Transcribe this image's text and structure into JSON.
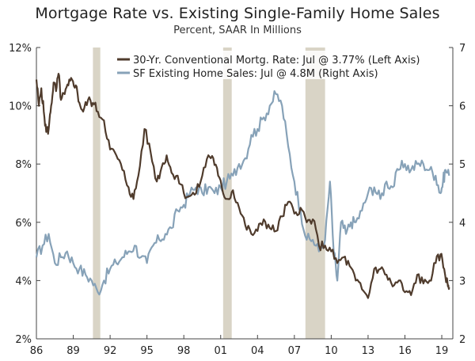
{
  "chart_data": {
    "type": "line",
    "title": "Mortgage Rate vs. Existing Single-Family Home Sales",
    "subtitle": "Percent, SAAR In Millions",
    "x_ticks": [
      "86",
      "89",
      "92",
      "95",
      "98",
      "01",
      "04",
      "07",
      "10",
      "13",
      "16",
      "19"
    ],
    "x_tick_years": [
      1986,
      1989,
      1992,
      1995,
      1998,
      2001,
      2004,
      2007,
      2010,
      2013,
      2016,
      2019
    ],
    "x_range": [
      1986.0,
      2019.9
    ],
    "left_axis": {
      "ticks": [
        "2%",
        "4%",
        "6%",
        "8%",
        "10%",
        "12%"
      ],
      "values": [
        2,
        4,
        6,
        8,
        10,
        12
      ],
      "range": [
        2,
        12
      ]
    },
    "right_axis": {
      "ticks": [
        "2",
        "3",
        "4",
        "5",
        "6",
        "7"
      ],
      "values": [
        2,
        3,
        4,
        5,
        6,
        7
      ],
      "range": [
        2,
        7
      ]
    },
    "recessions": [
      [
        1990.6,
        1991.2
      ],
      [
        2001.2,
        2001.9
      ],
      [
        2007.9,
        2009.5
      ]
    ],
    "legend_position": "top",
    "colors": {
      "mortgage": "#4f3b2c",
      "sales": "#87a2b8",
      "recession": "#d9d4c6",
      "axis": "#444444"
    },
    "series": [
      {
        "name": "30-Yr. Conventional Mortg. Rate: Jul @ 3.77% (Left Axis)",
        "axis": "left",
        "x": [
          1986.0,
          1986.2,
          1986.4,
          1986.6,
          1986.8,
          1987.0,
          1987.2,
          1987.4,
          1987.6,
          1987.8,
          1988.0,
          1988.3,
          1988.6,
          1988.9,
          1989.2,
          1989.5,
          1989.8,
          1990.2,
          1990.6,
          1991.0,
          1991.5,
          1992.0,
          1992.5,
          1993.0,
          1993.5,
          1993.9,
          1994.3,
          1994.8,
          1995.3,
          1995.8,
          1996.2,
          1996.6,
          1997.0,
          1997.5,
          1998.0,
          1998.5,
          1999.0,
          1999.5,
          2000.0,
          2000.4,
          2000.8,
          2001.2,
          2001.6,
          2002.0,
          2002.5,
          2003.0,
          2003.5,
          2004.0,
          2004.5,
          2005.0,
          2005.5,
          2006.0,
          2006.5,
          2007.0,
          2007.5,
          2008.0,
          2008.5,
          2009.0,
          2009.5,
          2010.0,
          2010.5,
          2011.0,
          2011.5,
          2012.0,
          2012.5,
          2013.0,
          2013.5,
          2014.0,
          2014.5,
          2015.0,
          2015.5,
          2016.0,
          2016.5,
          2017.0,
          2017.5,
          2018.0,
          2018.5,
          2018.9,
          2019.2,
          2019.5,
          2019.6
        ],
        "values": [
          10.9,
          10.0,
          10.6,
          9.8,
          9.1,
          9.2,
          10.0,
          10.8,
          10.5,
          11.1,
          10.2,
          10.4,
          10.7,
          10.9,
          10.7,
          10.1,
          9.8,
          10.2,
          10.1,
          9.8,
          9.5,
          8.5,
          8.3,
          7.8,
          7.2,
          6.8,
          7.6,
          9.2,
          8.4,
          7.4,
          7.9,
          8.3,
          7.7,
          7.6,
          7.0,
          6.9,
          7.0,
          7.6,
          8.3,
          8.2,
          7.6,
          7.0,
          6.8,
          7.1,
          6.5,
          5.9,
          5.6,
          5.7,
          6.1,
          5.8,
          5.7,
          6.2,
          6.7,
          6.3,
          6.5,
          6.0,
          6.1,
          5.2,
          5.2,
          5.0,
          4.6,
          4.8,
          4.5,
          4.0,
          3.7,
          3.4,
          4.4,
          4.4,
          4.2,
          3.8,
          4.0,
          3.6,
          3.5,
          4.2,
          3.9,
          4.0,
          4.6,
          4.9,
          4.4,
          3.8,
          3.77
        ]
      },
      {
        "name": "SF Existing Home Sales: Jul @ 4.8M (Right Axis)",
        "axis": "right",
        "x": [
          1986.0,
          1986.5,
          1987.0,
          1987.5,
          1988.0,
          1988.5,
          1989.0,
          1989.5,
          1990.0,
          1990.5,
          1991.0,
          1991.5,
          1992.0,
          1992.5,
          1993.0,
          1993.5,
          1994.0,
          1994.5,
          1995.0,
          1995.5,
          1996.0,
          1996.5,
          1997.0,
          1997.5,
          1998.0,
          1998.5,
          1999.0,
          1999.5,
          2000.0,
          2000.5,
          2001.0,
          2001.5,
          2002.0,
          2002.5,
          2003.0,
          2003.5,
          2004.0,
          2004.5,
          2005.0,
          2005.5,
          2006.0,
          2006.5,
          2007.0,
          2007.5,
          2008.0,
          2008.5,
          2009.0,
          2009.5,
          2009.9,
          2010.2,
          2010.5,
          2010.8,
          2011.2,
          2011.6,
          2012.0,
          2012.5,
          2013.0,
          2013.5,
          2014.0,
          2014.5,
          2015.0,
          2015.5,
          2016.0,
          2016.5,
          2017.0,
          2017.5,
          2018.0,
          2018.5,
          2018.9,
          2019.1,
          2019.3,
          2019.6
        ],
        "values": [
          3.4,
          3.6,
          3.8,
          3.3,
          3.4,
          3.5,
          3.3,
          3.2,
          3.1,
          3.0,
          2.8,
          3.0,
          3.2,
          3.3,
          3.4,
          3.5,
          3.6,
          3.4,
          3.3,
          3.6,
          3.7,
          3.8,
          3.9,
          4.2,
          4.3,
          4.5,
          4.6,
          4.5,
          4.6,
          4.5,
          4.6,
          4.7,
          4.8,
          5.0,
          5.1,
          5.5,
          5.6,
          5.8,
          6.0,
          6.2,
          6.0,
          5.3,
          4.7,
          4.2,
          3.7,
          3.7,
          3.5,
          3.7,
          4.7,
          3.5,
          3.0,
          4.0,
          3.8,
          4.0,
          4.0,
          4.2,
          4.5,
          4.6,
          4.4,
          4.7,
          4.6,
          4.9,
          5.0,
          4.9,
          5.0,
          5.0,
          4.9,
          4.8,
          4.5,
          4.7,
          4.9,
          4.8
        ]
      }
    ]
  }
}
